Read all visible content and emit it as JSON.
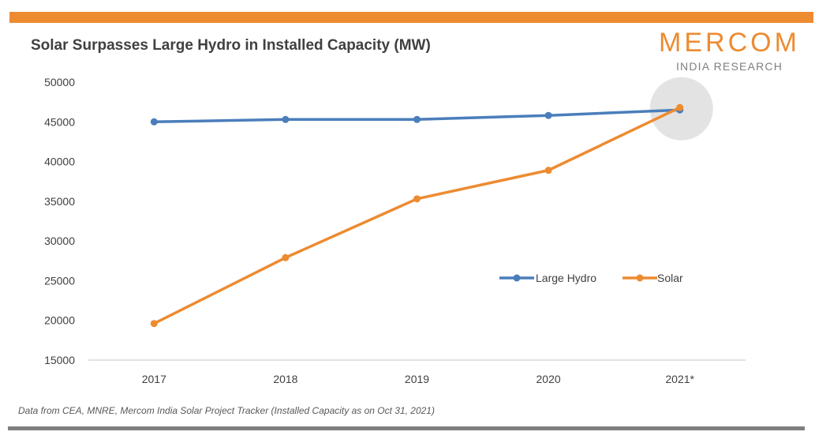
{
  "colors": {
    "accent_bar": "#ed8b31",
    "bottom_bar": "#7f7f7f",
    "large_hydro": "#4a7ebb",
    "solar": "#ed8b31",
    "brand": "#ed8b31",
    "highlight": "#d9d9d9",
    "axis": "#d9d9d9",
    "tick_text": "#404040"
  },
  "brand": {
    "name": "MERCOM",
    "sub": "INDIA RESEARCH"
  },
  "chart_data": {
    "type": "line",
    "title": "Solar Surpasses Large Hydro in Installed Capacity (MW)",
    "xlabel": "",
    "ylabel": "",
    "categories": [
      "2017",
      "2018",
      "2019",
      "2020",
      "2021*"
    ],
    "ylim": [
      15000,
      50000
    ],
    "yticks": [
      "50000",
      "45000",
      "40000",
      "35000",
      "30000",
      "25000",
      "20000",
      "15000"
    ],
    "ytick_values": [
      50000,
      45000,
      40000,
      35000,
      30000,
      25000,
      20000,
      15000
    ],
    "grid": false,
    "legend_position": "center-right",
    "series": [
      {
        "name": "Large Hydro",
        "values": [
          45000,
          45300,
          45300,
          45800,
          46500
        ]
      },
      {
        "name": "Solar",
        "values": [
          19600,
          27900,
          35300,
          38900,
          46800
        ]
      }
    ],
    "highlight_category": "2021*"
  },
  "footnote": "Data from CEA, MNRE, Mercom India Solar Project Tracker  (Installed Capacity as on Oct 31, 2021)"
}
